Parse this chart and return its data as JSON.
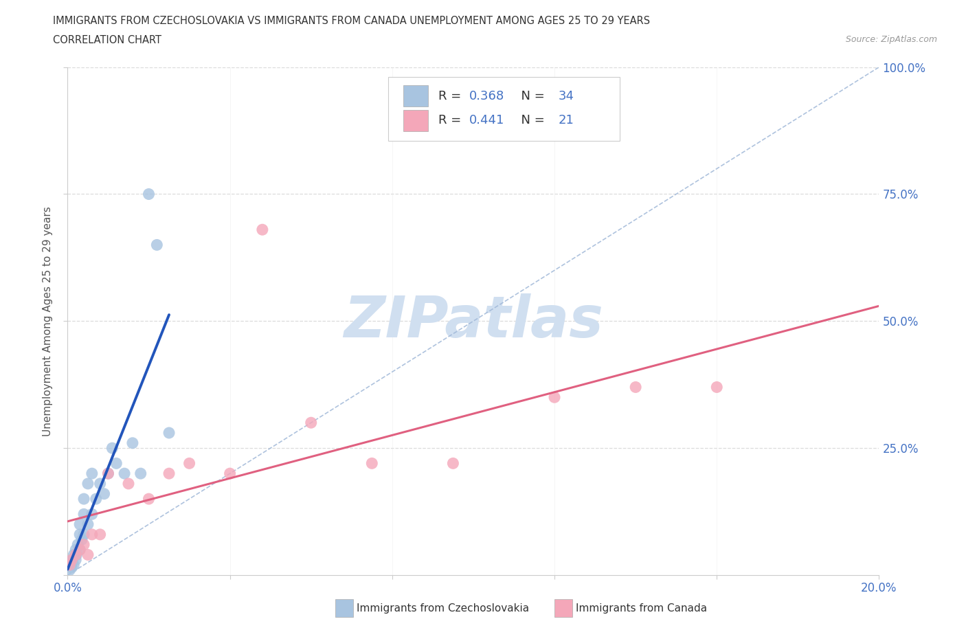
{
  "title_line1": "IMMIGRANTS FROM CZECHOSLOVAKIA VS IMMIGRANTS FROM CANADA UNEMPLOYMENT AMONG AGES 25 TO 29 YEARS",
  "title_line2": "CORRELATION CHART",
  "source": "Source: ZipAtlas.com",
  "ylabel": "Unemployment Among Ages 25 to 29 years",
  "xlim": [
    0.0,
    0.2
  ],
  "ylim": [
    0.0,
    1.0
  ],
  "blue_R": 0.368,
  "blue_N": 34,
  "pink_R": 0.441,
  "pink_N": 21,
  "blue_x": [
    0.0005,
    0.0008,
    0.001,
    0.001,
    0.0012,
    0.0015,
    0.0015,
    0.002,
    0.002,
    0.0022,
    0.0025,
    0.003,
    0.003,
    0.003,
    0.0035,
    0.004,
    0.004,
    0.004,
    0.005,
    0.005,
    0.006,
    0.006,
    0.007,
    0.008,
    0.009,
    0.01,
    0.011,
    0.012,
    0.014,
    0.016,
    0.018,
    0.02,
    0.022,
    0.025
  ],
  "blue_y": [
    0.01,
    0.02,
    0.015,
    0.025,
    0.03,
    0.02,
    0.04,
    0.03,
    0.05,
    0.04,
    0.06,
    0.05,
    0.08,
    0.1,
    0.07,
    0.08,
    0.12,
    0.15,
    0.1,
    0.18,
    0.12,
    0.2,
    0.15,
    0.18,
    0.16,
    0.2,
    0.25,
    0.22,
    0.2,
    0.26,
    0.2,
    0.75,
    0.65,
    0.28
  ],
  "pink_x": [
    0.0005,
    0.001,
    0.002,
    0.003,
    0.004,
    0.005,
    0.006,
    0.008,
    0.01,
    0.015,
    0.02,
    0.025,
    0.03,
    0.04,
    0.048,
    0.06,
    0.075,
    0.095,
    0.12,
    0.14,
    0.16
  ],
  "pink_y": [
    0.02,
    0.03,
    0.04,
    0.05,
    0.06,
    0.04,
    0.08,
    0.08,
    0.2,
    0.18,
    0.15,
    0.2,
    0.22,
    0.2,
    0.68,
    0.3,
    0.22,
    0.22,
    0.35,
    0.37,
    0.37
  ],
  "blue_color": "#a8c4e0",
  "pink_color": "#f4a7b9",
  "blue_line_color": "#2255bb",
  "pink_line_color": "#e06080",
  "diag_line_color": "#a0b8d8",
  "watermark_text": "ZIPatlas",
  "watermark_color": "#d0dff0",
  "background_color": "#ffffff",
  "legend_label_blue": "Immigrants from Czechoslovakia",
  "legend_label_pink": "Immigrants from Canada",
  "blue_trend_x_start": 0.0,
  "blue_trend_x_end": 0.025,
  "pink_trend_x_start": 0.0,
  "pink_trend_x_end": 0.2
}
